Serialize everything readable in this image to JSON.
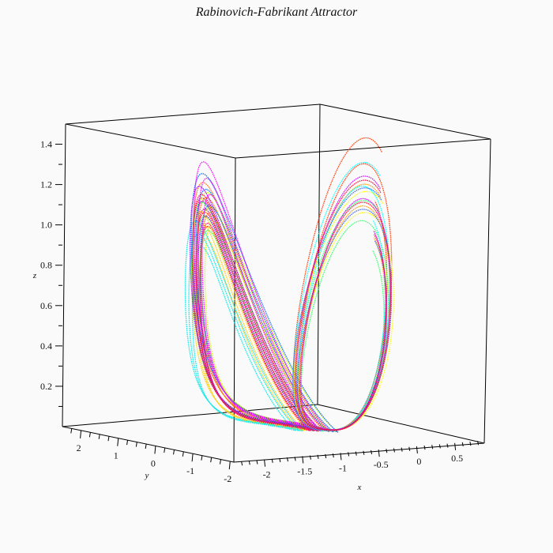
{
  "chart_data": {
    "type": "line",
    "projection": "3d",
    "title": "Rabinovich-Fabrikant Attractor",
    "xlabel": "x",
    "ylabel": "y",
    "zlabel": "z",
    "xlim": [
      -2.4,
      0.95
    ],
    "ylim": [
      -2.1,
      2.5
    ],
    "zlim": [
      0,
      1.5
    ],
    "x_ticks": [
      "-2",
      "-1.5",
      "-1",
      "-0.5",
      "0",
      "0.5"
    ],
    "x_tick_values": [
      -2,
      -1.5,
      -1,
      -0.5,
      0,
      0.5
    ],
    "y_ticks": [
      "2",
      "1",
      "0",
      "-1",
      "-2"
    ],
    "y_tick_values": [
      2,
      1,
      0,
      -1,
      -2
    ],
    "z_ticks": [
      "0.2",
      "0.4",
      "0.6",
      "0.8",
      "1.0",
      "1.2",
      "1.4"
    ],
    "z_tick_values": [
      0.2,
      0.4,
      0.6,
      0.8,
      1.0,
      1.2,
      1.4
    ],
    "grid": false,
    "legend": "none",
    "series": [
      {
        "color": "#ff0000",
        "lobe": "left",
        "cx": -1.1,
        "cy": 0.15,
        "rx": 0.55,
        "ry": 1.35,
        "zmax": 1.22
      },
      {
        "color": "#ff6600",
        "lobe": "left",
        "cx": -1.05,
        "cy": 0.1,
        "rx": 0.6,
        "ry": 1.45,
        "zmax": 1.3
      },
      {
        "color": "#ffcc00",
        "lobe": "left",
        "cx": -1.15,
        "cy": 0.2,
        "rx": 0.5,
        "ry": 1.25,
        "zmax": 1.15
      },
      {
        "color": "#ccff00",
        "lobe": "left",
        "cx": -1.0,
        "cy": 0.05,
        "rx": 0.62,
        "ry": 1.5,
        "zmax": 1.25
      },
      {
        "color": "#33ff33",
        "lobe": "left",
        "cx": -1.1,
        "cy": 0.1,
        "rx": 0.57,
        "ry": 1.4,
        "zmax": 1.2
      },
      {
        "color": "#00e6e6",
        "lobe": "left",
        "cx": -1.2,
        "cy": 0.25,
        "rx": 0.48,
        "ry": 1.3,
        "zmax": 1.1
      },
      {
        "color": "#0066ff",
        "lobe": "left",
        "cx": -1.05,
        "cy": 0.0,
        "rx": 0.65,
        "ry": 1.55,
        "zmax": 1.35
      },
      {
        "color": "#9900ff",
        "lobe": "left",
        "cx": -1.1,
        "cy": 0.15,
        "rx": 0.58,
        "ry": 1.38,
        "zmax": 1.28
      },
      {
        "color": "#ff00ff",
        "lobe": "left",
        "cx": -1.0,
        "cy": 0.2,
        "rx": 0.6,
        "ry": 1.42,
        "zmax": 1.4
      },
      {
        "color": "#ff0066",
        "lobe": "left",
        "cx": -1.12,
        "cy": 0.12,
        "rx": 0.55,
        "ry": 1.33,
        "zmax": 1.24
      },
      {
        "color": "#ff3300",
        "lobe": "right",
        "cx": -0.15,
        "cy": -0.45,
        "rx": 0.5,
        "ry": 0.95,
        "zmax": 1.45
      },
      {
        "color": "#ff9900",
        "lobe": "right",
        "cx": -0.15,
        "cy": -0.45,
        "rx": 0.48,
        "ry": 0.92,
        "zmax": 1.22
      },
      {
        "color": "#ffff00",
        "lobe": "right",
        "cx": -0.12,
        "cy": -0.42,
        "rx": 0.5,
        "ry": 0.98,
        "zmax": 1.18
      },
      {
        "color": "#33ff66",
        "lobe": "right",
        "cx": -0.15,
        "cy": -0.45,
        "rx": 0.46,
        "ry": 0.9,
        "zmax": 1.14
      },
      {
        "color": "#00ffff",
        "lobe": "right",
        "cx": -0.18,
        "cy": -0.48,
        "rx": 0.49,
        "ry": 0.94,
        "zmax": 1.33
      },
      {
        "color": "#3366ff",
        "lobe": "right",
        "cx": -0.15,
        "cy": -0.44,
        "rx": 0.5,
        "ry": 0.96,
        "zmax": 1.2
      },
      {
        "color": "#cc00ff",
        "lobe": "right",
        "cx": -0.14,
        "cy": -0.45,
        "rx": 0.47,
        "ry": 0.93,
        "zmax": 1.26
      },
      {
        "color": "#ff0033",
        "lobe": "right",
        "cx": -0.15,
        "cy": -0.46,
        "rx": 0.48,
        "ry": 0.95,
        "zmax": 1.24
      }
    ]
  }
}
